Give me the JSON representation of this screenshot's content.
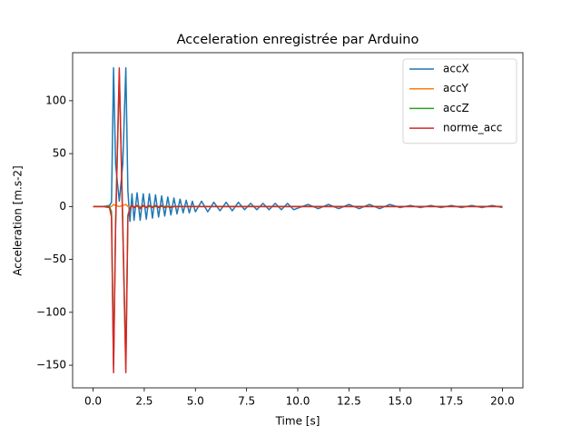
{
  "chart_data": {
    "type": "line",
    "title": "Acceleration enregistrée par Arduino",
    "x_label": "Time [s]",
    "y_label": "Acceleration [m.s-2]",
    "x": [
      0,
      0.5,
      0.8,
      0.9,
      1.0,
      1.1,
      1.28,
      1.45,
      1.6,
      1.7,
      1.8,
      1.9,
      2.0,
      2.15,
      2.3,
      2.45,
      2.6,
      2.75,
      2.9,
      3.05,
      3.2,
      3.35,
      3.5,
      3.65,
      3.8,
      3.95,
      4.1,
      4.25,
      4.4,
      4.55,
      4.7,
      4.85,
      5.0,
      5.3,
      5.6,
      5.9,
      6.2,
      6.5,
      6.8,
      7.1,
      7.4,
      7.7,
      8.0,
      8.3,
      8.6,
      8.9,
      9.2,
      9.5,
      9.8,
      10.5,
      11,
      11.5,
      12,
      12.5,
      13,
      13.5,
      14,
      14.5,
      15,
      15.5,
      16,
      16.5,
      17,
      17.5,
      18,
      18.5,
      19,
      19.5,
      20
    ],
    "series": [
      {
        "name": "accX",
        "color": "#1f77b4",
        "values": [
          0,
          0,
          1,
          4,
          131,
          40,
          5,
          40,
          131,
          15,
          -14,
          12,
          -13,
          13,
          -13,
          12,
          -12,
          12,
          -11,
          11,
          -10,
          10,
          -9,
          9,
          -8,
          8,
          -7,
          7,
          -6,
          6,
          -6,
          5,
          -5,
          5,
          -5,
          4,
          -4,
          4,
          -4,
          4,
          -3,
          3,
          -3,
          3,
          -3,
          3,
          -3,
          3,
          -3,
          2,
          -2,
          2,
          -2,
          2,
          -2,
          2,
          -2,
          2,
          -1,
          1,
          -1,
          1,
          -1,
          1,
          -1,
          1,
          -1,
          1,
          -1
        ]
      },
      {
        "name": "accY",
        "color": "#ff7f0e",
        "values": [
          0,
          0,
          0,
          0,
          2,
          1,
          0,
          1,
          2,
          0,
          0,
          0,
          0,
          0,
          0,
          0,
          0,
          0,
          0,
          0,
          0,
          0,
          0,
          0,
          0,
          0,
          0,
          0,
          0,
          0,
          0,
          0,
          0,
          0,
          0,
          0,
          0,
          0,
          0,
          0,
          0,
          0,
          0,
          0,
          0,
          0,
          0,
          0,
          0,
          0,
          0,
          0,
          0,
          0,
          0,
          0,
          0,
          0,
          0,
          0,
          0,
          0,
          0,
          0,
          0,
          0,
          0,
          0,
          0
        ]
      },
      {
        "name": "accZ",
        "color": "#2ca02c",
        "values": [
          0,
          0,
          0,
          -5,
          -150,
          -15,
          125,
          -15,
          -150,
          -8,
          -2,
          1,
          -1,
          1,
          -1,
          1,
          -1,
          0,
          0,
          0,
          0,
          0,
          0,
          0,
          0,
          0,
          0,
          0,
          0,
          0,
          0,
          0,
          0,
          0,
          0,
          0,
          0,
          0,
          0,
          0,
          0,
          0,
          0,
          0,
          0,
          0,
          0,
          0,
          0,
          0,
          0,
          0,
          0,
          0,
          0,
          0,
          0,
          0,
          0,
          0,
          0,
          0,
          0,
          0,
          0,
          0,
          0,
          0,
          0
        ]
      },
      {
        "name": "norme_acc",
        "color": "#d62728",
        "values": [
          0,
          0,
          -1,
          -10,
          -157,
          -20,
          131,
          -20,
          -157,
          -10,
          -2,
          1,
          -1,
          1,
          -2,
          1,
          -1,
          1,
          -1,
          1,
          -1,
          1,
          -1,
          0,
          -1,
          0,
          0,
          0,
          0,
          0,
          0,
          0,
          0,
          0,
          0,
          0,
          0,
          0,
          0,
          0,
          0,
          0,
          0,
          0,
          0,
          0,
          0,
          0,
          0,
          0,
          0,
          0,
          0,
          0,
          0,
          0,
          0,
          0,
          0,
          0,
          0,
          0,
          0,
          0,
          0,
          0,
          0,
          0,
          0
        ]
      }
    ],
    "xlim": [
      -1,
      21
    ],
    "ylim": [
      -171.4,
      145.4
    ],
    "xticks": [
      {
        "value": 0,
        "label": "0.0"
      },
      2.5,
      {
        "value": 5,
        "label": "5.0"
      },
      7.5,
      {
        "value": 10,
        "label": "10.0"
      },
      12.5,
      {
        "value": 15,
        "label": "15.0"
      },
      17.5,
      {
        "value": 20,
        "label": "20.0"
      }
    ],
    "yticks": [
      {
        "value": -150,
        "label": "−150"
      },
      {
        "value": -100,
        "label": "−100"
      },
      {
        "value": -50,
        "label": "−50"
      },
      0,
      50,
      100
    ],
    "legend": "upper right"
  }
}
